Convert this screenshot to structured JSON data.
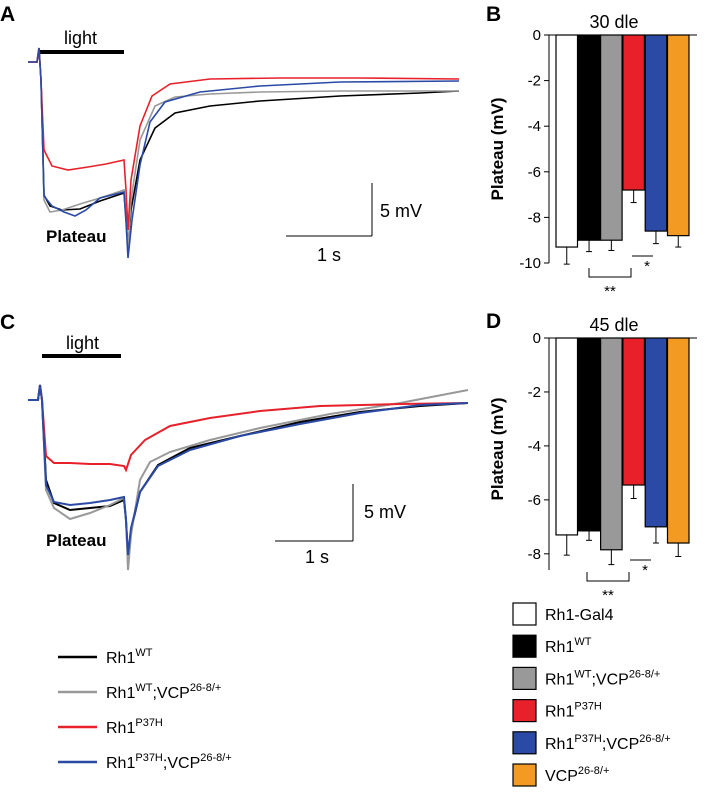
{
  "panels": {
    "A": {
      "letter": "A",
      "light": "light",
      "plateau": "Plateau",
      "scale_v": "5 mV",
      "scale_t": "1 s"
    },
    "B": {
      "letter": "B",
      "title": "30 dle",
      "ylabel": "Plateau (mV)"
    },
    "C": {
      "letter": "C",
      "light": "light",
      "plateau": "Plateau",
      "scale_v": "5 mV",
      "scale_t": "1 s"
    },
    "D": {
      "letter": "D",
      "title": "45 dle",
      "ylabel": "Plateau (mV)"
    }
  },
  "colors": {
    "white": "#ffffff",
    "black": "#000000",
    "gray": "#999999",
    "red": "#e8202a",
    "blue": "#2b4aa6",
    "orange": "#f39a22"
  },
  "line_legend": [
    {
      "base": "Rh1",
      "sup": "WT",
      "mid": "",
      "sup2": "",
      "color": "#000000"
    },
    {
      "base": "Rh1",
      "sup": "WT",
      "mid": ";VCP",
      "sup2": "26-8/+",
      "color": "#999999"
    },
    {
      "base": "Rh1",
      "sup": "P37H",
      "mid": "",
      "sup2": "",
      "color": "#e8202a"
    },
    {
      "base": "Rh1",
      "sup": "P37H",
      "mid": ";VCP",
      "sup2": "26-8/+",
      "color": "#2b4aa6"
    }
  ],
  "bar_legend": [
    {
      "base": "Rh1-Gal4",
      "sup": "",
      "mid": "",
      "sup2": "",
      "color": "#ffffff"
    },
    {
      "base": "Rh1",
      "sup": "WT",
      "mid": "",
      "sup2": "",
      "color": "#000000"
    },
    {
      "base": "Rh1",
      "sup": "WT",
      "mid": ";VCP",
      "sup2": "26-8/+",
      "color": "#999999"
    },
    {
      "base": "Rh1",
      "sup": "P37H",
      "mid": "",
      "sup2": "",
      "color": "#e8202a"
    },
    {
      "base": "Rh1",
      "sup": "P37H",
      "mid": ";VCP",
      "sup2": "26-8/+",
      "color": "#2b4aa6"
    },
    {
      "base": "VCP",
      "sup": "26-8/+",
      "mid": "",
      "sup2": "",
      "color": "#f39a22"
    }
  ],
  "chart_data": [
    {
      "panel": "B",
      "type": "bar",
      "title": "30 dle",
      "ylabel": "Plateau (mV)",
      "ylim": [
        -10,
        0
      ],
      "yticks": [
        "0",
        "-2",
        "-4",
        "-6",
        "-8",
        "-10"
      ],
      "values": [
        -9.3,
        -9.0,
        -9.0,
        -6.8,
        -8.6,
        -8.8
      ],
      "errors": [
        0.75,
        0.5,
        0.45,
        0.55,
        0.55,
        0.5
      ],
      "colors": [
        "#ffffff",
        "#000000",
        "#999999",
        "#e8202a",
        "#2b4aa6",
        "#f39a22"
      ],
      "annotations": [
        "**",
        "*"
      ]
    },
    {
      "panel": "D",
      "type": "bar",
      "title": "45 dle",
      "ylabel": "Plateau (mV)",
      "ylim": [
        -8.6,
        0
      ],
      "yticks": [
        "0",
        "-2",
        "-4",
        "-6",
        "-8"
      ],
      "values": [
        -7.3,
        -7.15,
        -7.85,
        -5.45,
        -7.0,
        -7.6
      ],
      "errors": [
        0.75,
        0.35,
        0.55,
        0.5,
        0.6,
        0.5
      ],
      "colors": [
        "#ffffff",
        "#000000",
        "#999999",
        "#e8202a",
        "#2b4aa6",
        "#f39a22"
      ],
      "annotations": [
        "**",
        "*"
      ]
    }
  ]
}
